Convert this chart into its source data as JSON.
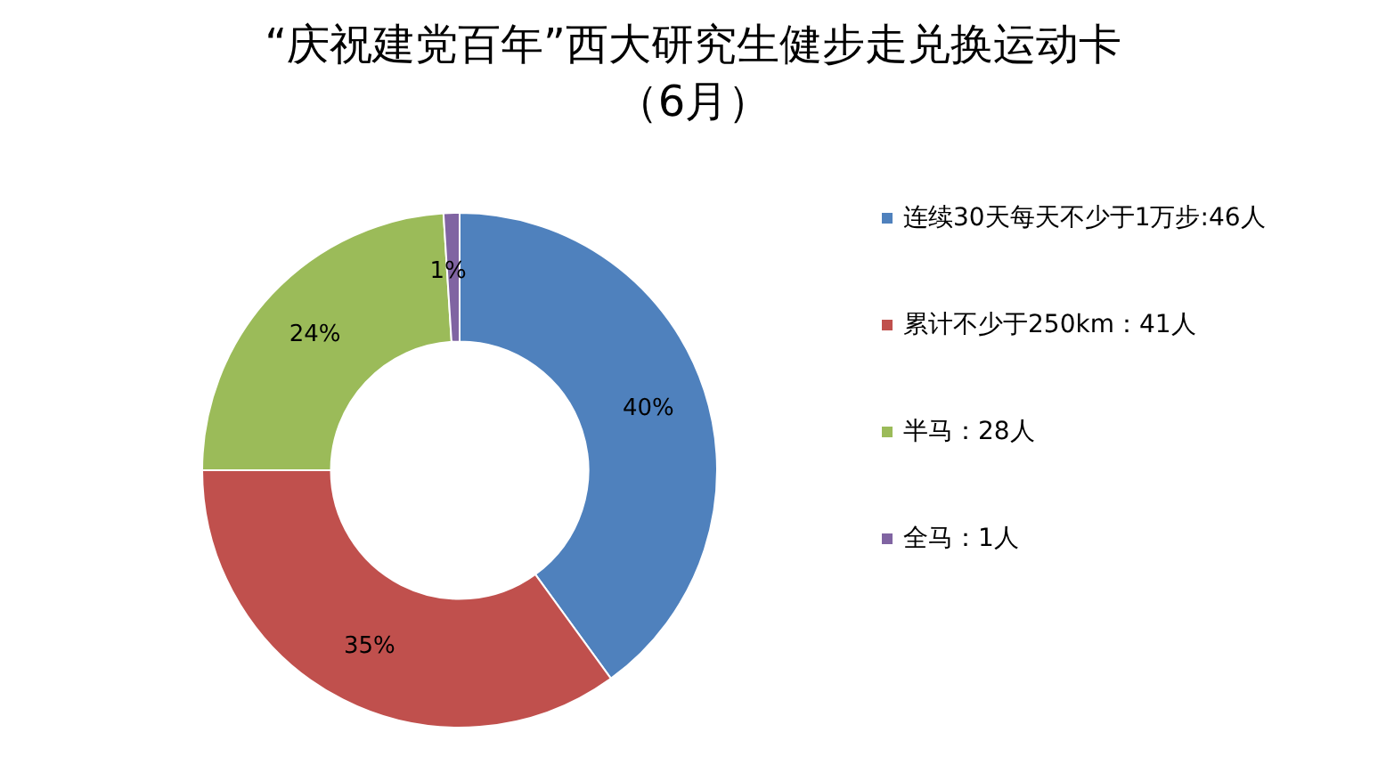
{
  "chart_data": {
    "type": "donut",
    "title": "“庆祝建党百年”西大研究生健步走兑换运动卡",
    "subtitle": "（6月）",
    "categories": [
      "连续30天每天不少于1万步:46人",
      "累计不少于250km：41人",
      "半马：28人",
      "全马：1人"
    ],
    "values": [
      40,
      35,
      24,
      1
    ],
    "value_labels": [
      "40%",
      "35%",
      "24%",
      "1%"
    ],
    "colors": [
      "#4f81bd",
      "#c0504d",
      "#9bbb59",
      "#8064a2"
    ],
    "legend": "right"
  }
}
